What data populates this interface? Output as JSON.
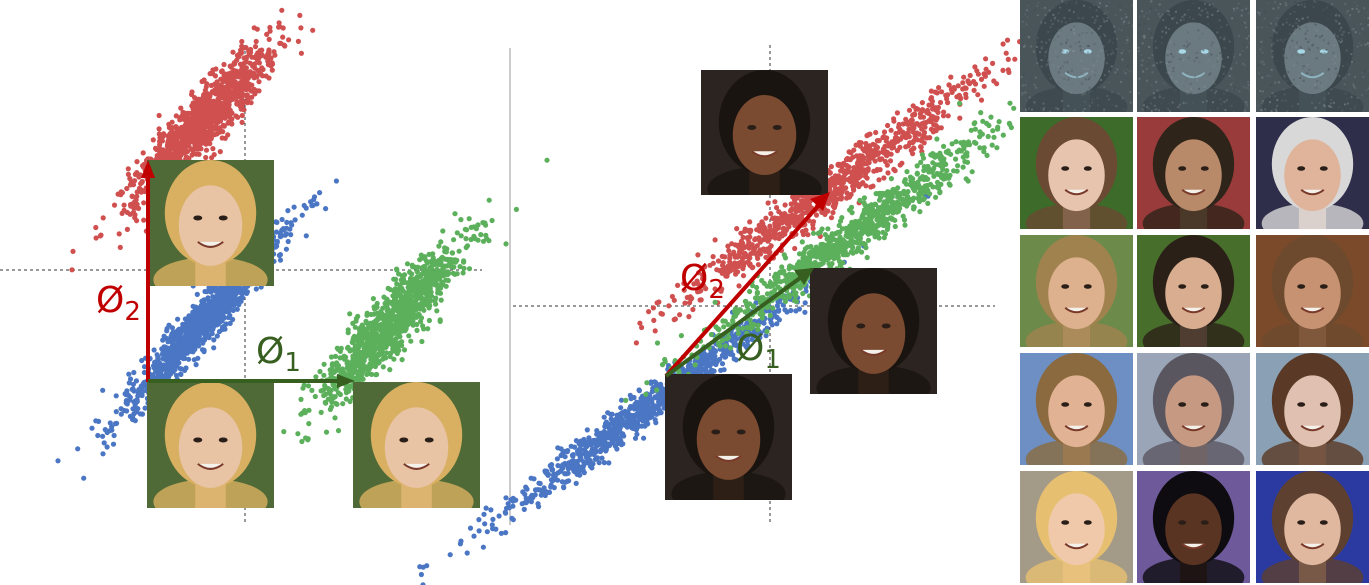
{
  "figure": {
    "left_panel": {
      "phi2_label": "Ø",
      "phi2_sub": "2",
      "phi1_label": "Ø",
      "phi1_sub": "1",
      "clusters": {
        "red": {
          "color": "#d05050",
          "count": 1100,
          "center": [
            -0.45,
            1.55
          ],
          "slope": 1.15,
          "spread": [
            1.1,
            0.12
          ]
        },
        "blue": {
          "color": "#4a76c4",
          "count": 1200,
          "center": [
            -0.45,
            -0.55
          ],
          "slope": 1.15,
          "spread": [
            1.2,
            0.09
          ]
        },
        "green": {
          "color": "#5cb05c",
          "count": 1100,
          "center": [
            1.55,
            -0.55
          ],
          "slope": 1.15,
          "spread": [
            1.1,
            0.12
          ]
        }
      },
      "photo_style": {
        "hair": "#d9b061",
        "bg": "#4f6a36",
        "skin": "#e8c3a4"
      }
    },
    "right_panel": {
      "phi2_label": "Ø",
      "phi2_sub": "2",
      "phi1_label": "Ø",
      "phi1_sub": "1",
      "clusters": {
        "red": {
          "color": "#d05050",
          "count": 900,
          "center": [
            0.6,
            1.2
          ]
        },
        "blue": {
          "color": "#4a76c4",
          "count": 1000,
          "center": [
            -1.2,
            -1.0
          ]
        },
        "green": {
          "color": "#5cb05c",
          "count": 900,
          "center": [
            0.8,
            0.7
          ]
        }
      },
      "photo_style": {
        "hair": "#1a1410",
        "bg": "#2b2420",
        "skin": "#7a4b30"
      }
    },
    "arrow_colors": {
      "phi2": "#c00000",
      "phi1": "#375f20"
    },
    "face_grid": {
      "rows": [
        [
          {
            "kind": "noise",
            "bg": "#4a555a",
            "skin": "#6a7a80",
            "hair": "#3b474c"
          },
          {
            "kind": "noise",
            "bg": "#4a555a",
            "skin": "#6a7a80",
            "hair": "#3b474c"
          },
          {
            "kind": "noise",
            "bg": "#4a555a",
            "skin": "#6a7a80",
            "hair": "#3b474c"
          }
        ],
        [
          {
            "kind": "face",
            "bg": "#3d6b2a",
            "skin": "#e6c4ae",
            "hair": "#6a4a32"
          },
          {
            "kind": "face",
            "bg": "#9a3b3b",
            "skin": "#b88a6a",
            "hair": "#2e2419"
          },
          {
            "kind": "face",
            "bg": "#2e2d4a",
            "skin": "#e0b49a",
            "hair": "#d8d8d8"
          }
        ],
        [
          {
            "kind": "face",
            "bg": "#6c8b4a",
            "skin": "#ddb08e",
            "hair": "#a0824e"
          },
          {
            "kind": "face",
            "bg": "#486e2c",
            "skin": "#d9ad8f",
            "hair": "#2a2018"
          },
          {
            "kind": "face",
            "bg": "#7a4a2a",
            "skin": "#c69272",
            "hair": "#6d4a2e"
          }
        ],
        [
          {
            "kind": "face",
            "bg": "#6d8fc4",
            "skin": "#e2b294",
            "hair": "#8a6a3e"
          },
          {
            "kind": "face",
            "bg": "#9aa6b8",
            "skin": "#c69a82",
            "hair": "#5a5660"
          },
          {
            "kind": "face",
            "bg": "#8aa0b4",
            "skin": "#e0c0b0",
            "hair": "#5a3a26"
          }
        ],
        [
          {
            "kind": "face",
            "bg": "#a49a88",
            "skin": "#f0c8aa",
            "hair": "#e6c070"
          },
          {
            "kind": "face",
            "bg": "#6e5a9a",
            "skin": "#5a3422",
            "hair": "#0e0c10"
          },
          {
            "kind": "face",
            "bg": "#2a3aa0",
            "skin": "#e0b8a0",
            "hair": "#5e4030"
          }
        ]
      ]
    }
  }
}
